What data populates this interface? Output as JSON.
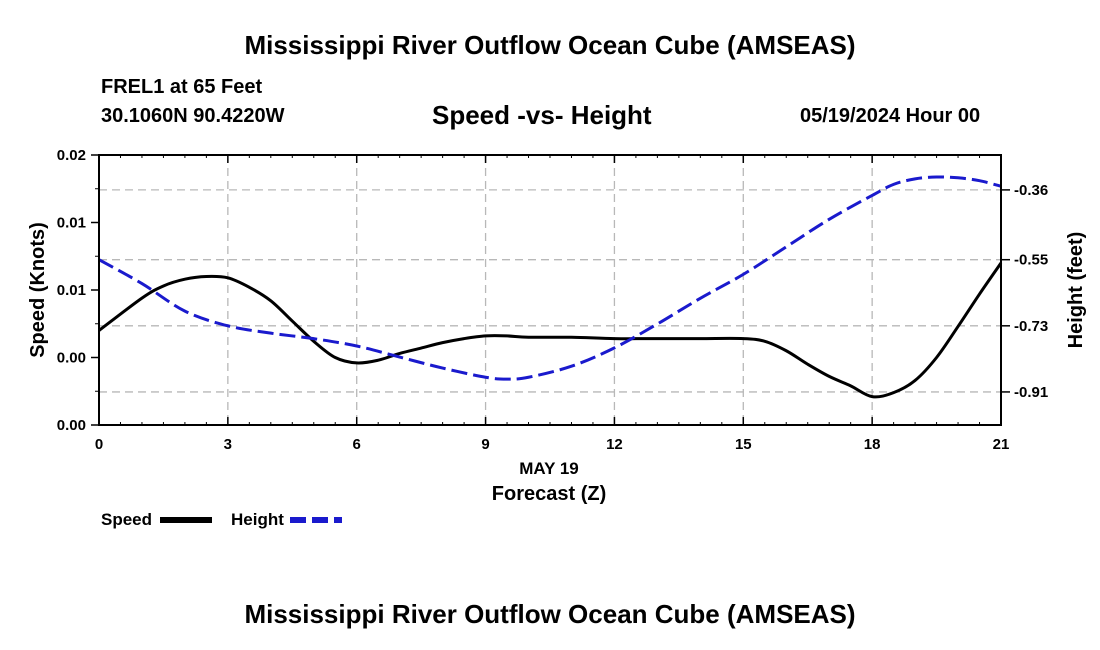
{
  "header": {
    "title": "Mississippi River Outflow Ocean Cube (AMSEAS)",
    "station": "FREL1 at 65 Feet",
    "coords": "30.1060N  90.4220W",
    "subtitle": "Speed -vs- Height",
    "datetime": "05/19/2024 Hour 00"
  },
  "footer": {
    "title": "Mississippi River Outflow Ocean Cube (AMSEAS)"
  },
  "chart_data": {
    "type": "line",
    "title": "Speed -vs- Height",
    "xlabel": "Forecast (Z)",
    "xlabel_date": "MAY 19",
    "ylabel": "Speed (Knots)",
    "y2label": "Height (feet)",
    "xlim": [
      0,
      21
    ],
    "ylim": [
      0,
      0.02
    ],
    "y2lim": [
      -1.0,
      -0.265
    ],
    "x_ticks": [
      0,
      3,
      6,
      9,
      12,
      15,
      18,
      21
    ],
    "x_tick_labels": [
      "0",
      "3",
      "6",
      "9",
      "12",
      "15",
      "18",
      "21"
    ],
    "y_ticks": [
      0,
      0.005,
      0.01,
      0.015,
      0.02
    ],
    "y_tick_labels": [
      "0.00",
      "0.00",
      "0.01",
      "0.01",
      "0.02"
    ],
    "y2_ticks": [
      -0.91,
      -0.73,
      -0.55,
      -0.36
    ],
    "y2_tick_labels": [
      "-0.91",
      "-0.73",
      "-0.55",
      "-0.36"
    ],
    "grid": true,
    "legend": [
      {
        "label": "Speed",
        "color": "#000000",
        "style": "solid"
      },
      {
        "label": "Height",
        "color": "#1a1acd",
        "style": "dashed"
      }
    ],
    "series": [
      {
        "name": "Speed",
        "axis": "left",
        "color": "#000000",
        "x": [
          0,
          1,
          1.5,
          2,
          2.5,
          3,
          3.5,
          4,
          4.5,
          5,
          5.5,
          6,
          6.5,
          7,
          7.5,
          8,
          8.5,
          9,
          9.5,
          10,
          11,
          12,
          13,
          14,
          15,
          15.5,
          16,
          16.5,
          17,
          17.5,
          18,
          18.5,
          19,
          19.5,
          20,
          20.5,
          21
        ],
        "values": [
          0.007,
          0.0094,
          0.0103,
          0.0108,
          0.011,
          0.0109,
          0.0102,
          0.0092,
          0.0077,
          0.0062,
          0.005,
          0.0046,
          0.0048,
          0.0053,
          0.0057,
          0.0061,
          0.0064,
          0.0066,
          0.0066,
          0.0065,
          0.0065,
          0.0064,
          0.0064,
          0.0064,
          0.0064,
          0.0062,
          0.0055,
          0.0045,
          0.0036,
          0.0029,
          0.0021,
          0.0024,
          0.0033,
          0.005,
          0.0073,
          0.0097,
          0.012
        ]
      },
      {
        "name": "Height",
        "axis": "right",
        "color": "#1a1acd",
        "x": [
          0,
          1,
          2,
          3,
          4,
          5,
          6,
          7,
          8,
          9,
          9.5,
          10,
          11,
          12,
          13,
          14,
          15,
          16,
          17,
          18,
          18.5,
          19,
          19.5,
          20,
          20.5,
          21
        ],
        "values": [
          -0.55,
          -0.615,
          -0.69,
          -0.73,
          -0.75,
          -0.765,
          -0.785,
          -0.815,
          -0.845,
          -0.87,
          -0.875,
          -0.87,
          -0.84,
          -0.79,
          -0.725,
          -0.655,
          -0.59,
          -0.515,
          -0.44,
          -0.375,
          -0.345,
          -0.33,
          -0.325,
          -0.327,
          -0.335,
          -0.35
        ]
      }
    ]
  }
}
